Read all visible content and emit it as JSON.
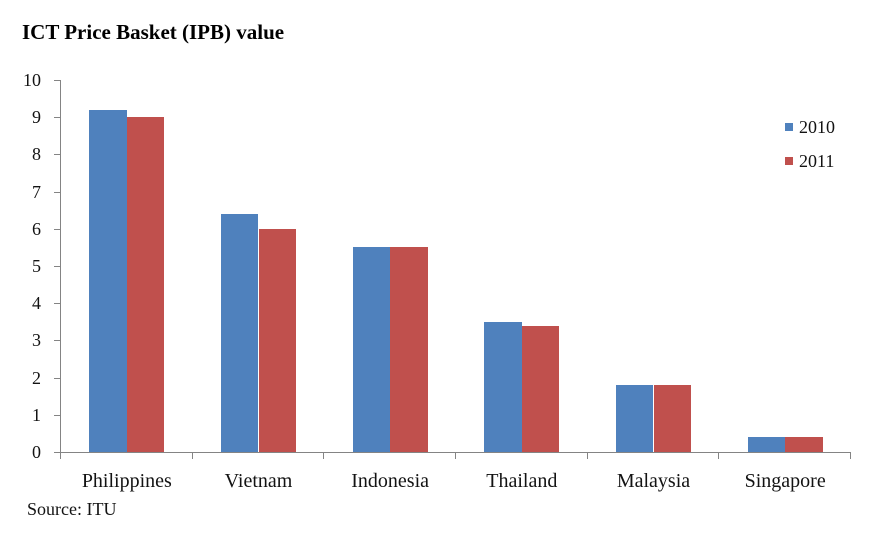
{
  "chart_data": {
    "type": "bar",
    "title": "ICT Price Basket (IPB) value",
    "categories": [
      "Philippines",
      "Vietnam",
      "Indonesia",
      "Thailand",
      "Malaysia",
      "Singapore"
    ],
    "series": [
      {
        "name": "2010",
        "color": "#4F81BD",
        "values": [
          9.2,
          6.4,
          5.5,
          3.5,
          1.8,
          0.4
        ]
      },
      {
        "name": "2011",
        "color": "#C0504D",
        "values": [
          9.0,
          6.0,
          5.5,
          3.4,
          1.8,
          0.4
        ]
      }
    ],
    "xlabel": "",
    "ylabel": "",
    "ylim": [
      0,
      10
    ],
    "ytick_interval": 1,
    "yticks": [
      0,
      1,
      2,
      3,
      4,
      5,
      6,
      7,
      8,
      9,
      10
    ],
    "grid": false,
    "legend_position": "right",
    "axis_color": "#848484",
    "text_color": "#131313",
    "source": "Source: ITU"
  }
}
